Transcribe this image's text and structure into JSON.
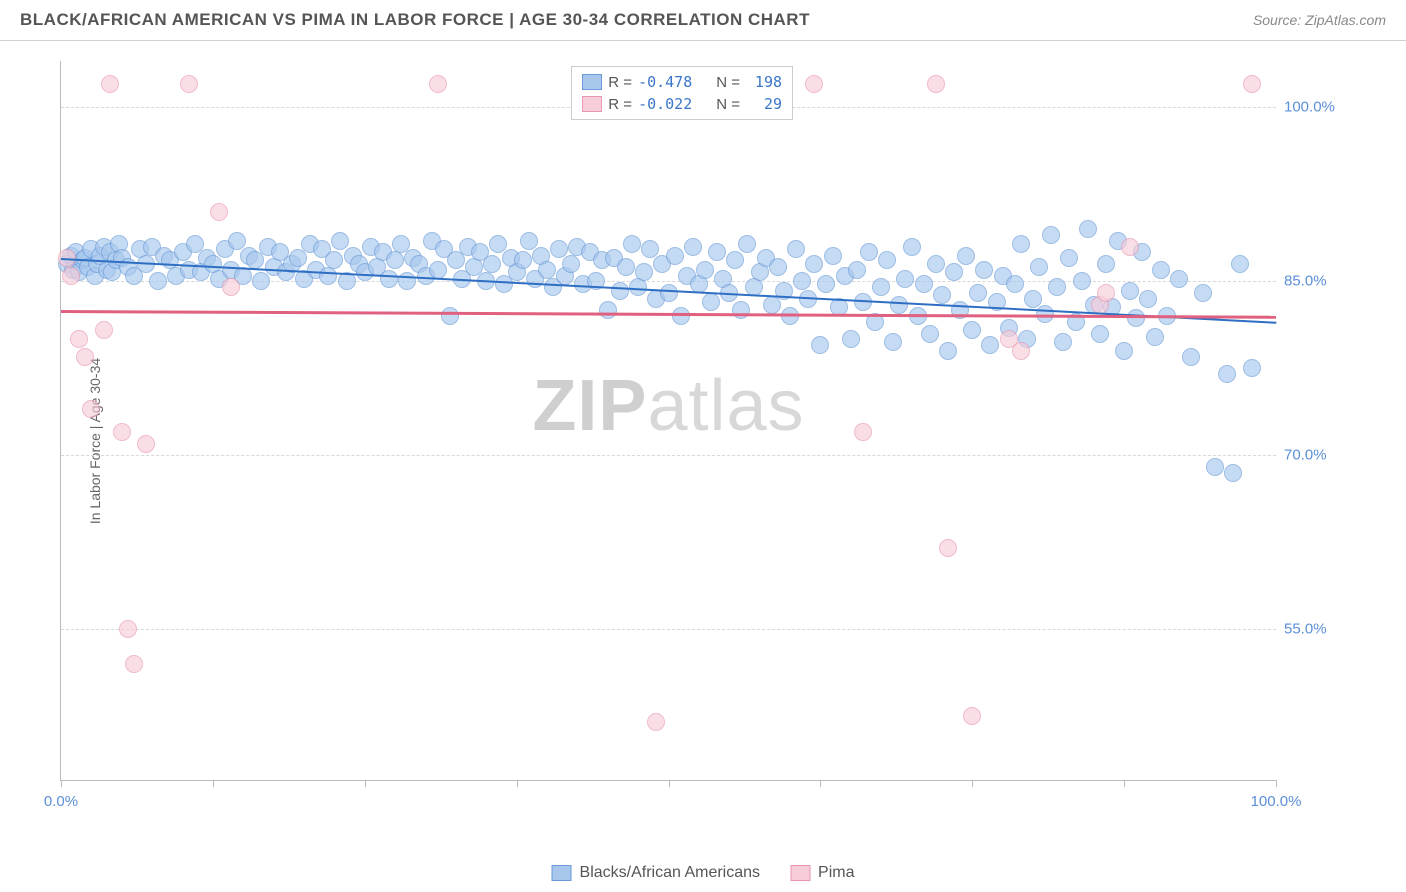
{
  "title": "BLACK/AFRICAN AMERICAN VS PIMA IN LABOR FORCE | AGE 30-34 CORRELATION CHART",
  "source": "Source: ZipAtlas.com",
  "ylabel": "In Labor Force | Age 30-34",
  "watermark_zip": "ZIP",
  "watermark_atlas": "atlas",
  "chart": {
    "type": "scatter",
    "background_color": "#ffffff",
    "grid_color": "#d8d8d8",
    "axis_color": "#bbbbbb",
    "xlim": [
      0,
      100
    ],
    "ylim": [
      42,
      104
    ],
    "ytick_values": [
      55.0,
      70.0,
      85.0,
      100.0
    ],
    "ytick_labels": [
      "55.0%",
      "70.0%",
      "85.0%",
      "100.0%"
    ],
    "xtick_values": [
      0,
      12.5,
      25,
      37.5,
      50,
      62.5,
      75,
      87.5,
      100
    ],
    "x_axis_labels": {
      "0": "0.0%",
      "100": "100.0%"
    },
    "series": [
      {
        "name": "Blacks/African Americans",
        "name_short": "blacks",
        "color_fill": "#a7c7ed",
        "color_stroke": "#6a9bd8",
        "marker_opacity": 0.65,
        "marker_radius": 9,
        "R": "-0.478",
        "N": "198",
        "trend": {
          "x1": 0,
          "y1": 87.0,
          "x2": 100,
          "y2": 81.5,
          "color": "#2e6fc4",
          "width": 2
        },
        "points": [
          [
            0.5,
            86.5
          ],
          [
            0.8,
            87.2
          ],
          [
            1.0,
            86.0
          ],
          [
            1.2,
            87.5
          ],
          [
            1.5,
            85.8
          ],
          [
            1.8,
            86.8
          ],
          [
            2.0,
            87.0
          ],
          [
            2.2,
            86.2
          ],
          [
            2.5,
            87.8
          ],
          [
            2.8,
            85.5
          ],
          [
            3.0,
            86.5
          ],
          [
            3.2,
            87.2
          ],
          [
            3.5,
            88.0
          ],
          [
            3.8,
            86.0
          ],
          [
            4.0,
            87.5
          ],
          [
            4.2,
            85.8
          ],
          [
            4.5,
            86.8
          ],
          [
            4.8,
            88.2
          ],
          [
            5.0,
            87.0
          ],
          [
            5.5,
            86.2
          ],
          [
            6.0,
            85.5
          ],
          [
            6.5,
            87.8
          ],
          [
            7.0,
            86.5
          ],
          [
            7.5,
            88.0
          ],
          [
            8.0,
            85.0
          ],
          [
            8.5,
            87.2
          ],
          [
            9.0,
            86.8
          ],
          [
            9.5,
            85.5
          ],
          [
            10.0,
            87.5
          ],
          [
            10.5,
            86.0
          ],
          [
            11.0,
            88.2
          ],
          [
            11.5,
            85.8
          ],
          [
            12.0,
            87.0
          ],
          [
            12.5,
            86.5
          ],
          [
            13.0,
            85.2
          ],
          [
            13.5,
            87.8
          ],
          [
            14.0,
            86.0
          ],
          [
            14.5,
            88.5
          ],
          [
            15.0,
            85.5
          ],
          [
            15.5,
            87.2
          ],
          [
            16.0,
            86.8
          ],
          [
            16.5,
            85.0
          ],
          [
            17.0,
            88.0
          ],
          [
            17.5,
            86.2
          ],
          [
            18.0,
            87.5
          ],
          [
            18.5,
            85.8
          ],
          [
            19.0,
            86.5
          ],
          [
            19.5,
            87.0
          ],
          [
            20.0,
            85.2
          ],
          [
            20.5,
            88.2
          ],
          [
            21.0,
            86.0
          ],
          [
            21.5,
            87.8
          ],
          [
            22.0,
            85.5
          ],
          [
            22.5,
            86.8
          ],
          [
            23.0,
            88.5
          ],
          [
            23.5,
            85.0
          ],
          [
            24.0,
            87.2
          ],
          [
            24.5,
            86.5
          ],
          [
            25.0,
            85.8
          ],
          [
            25.5,
            88.0
          ],
          [
            26.0,
            86.2
          ],
          [
            26.5,
            87.5
          ],
          [
            27.0,
            85.2
          ],
          [
            27.5,
            86.8
          ],
          [
            28.0,
            88.2
          ],
          [
            28.5,
            85.0
          ],
          [
            29.0,
            87.0
          ],
          [
            29.5,
            86.5
          ],
          [
            30.0,
            85.5
          ],
          [
            30.5,
            88.5
          ],
          [
            31.0,
            86.0
          ],
          [
            31.5,
            87.8
          ],
          [
            32.0,
            82.0
          ],
          [
            32.5,
            86.8
          ],
          [
            33.0,
            85.2
          ],
          [
            33.5,
            88.0
          ],
          [
            34.0,
            86.2
          ],
          [
            34.5,
            87.5
          ],
          [
            35.0,
            85.0
          ],
          [
            35.5,
            86.5
          ],
          [
            36.0,
            88.2
          ],
          [
            36.5,
            84.8
          ],
          [
            37.0,
            87.0
          ],
          [
            37.5,
            85.8
          ],
          [
            38.0,
            86.8
          ],
          [
            38.5,
            88.5
          ],
          [
            39.0,
            85.2
          ],
          [
            39.5,
            87.2
          ],
          [
            40.0,
            86.0
          ],
          [
            40.5,
            84.5
          ],
          [
            41.0,
            87.8
          ],
          [
            41.5,
            85.5
          ],
          [
            42.0,
            86.5
          ],
          [
            42.5,
            88.0
          ],
          [
            43.0,
            84.8
          ],
          [
            43.5,
            87.5
          ],
          [
            44.0,
            85.0
          ],
          [
            44.5,
            86.8
          ],
          [
            45.0,
            82.5
          ],
          [
            45.5,
            87.0
          ],
          [
            46.0,
            84.2
          ],
          [
            46.5,
            86.2
          ],
          [
            47.0,
            88.2
          ],
          [
            47.5,
            84.5
          ],
          [
            48.0,
            85.8
          ],
          [
            48.5,
            87.8
          ],
          [
            49.0,
            83.5
          ],
          [
            49.5,
            86.5
          ],
          [
            50.0,
            84.0
          ],
          [
            50.5,
            87.2
          ],
          [
            51.0,
            82.0
          ],
          [
            51.5,
            85.5
          ],
          [
            52.0,
            88.0
          ],
          [
            52.5,
            84.8
          ],
          [
            53.0,
            86.0
          ],
          [
            53.5,
            83.2
          ],
          [
            54.0,
            87.5
          ],
          [
            54.5,
            85.2
          ],
          [
            55.0,
            84.0
          ],
          [
            55.5,
            86.8
          ],
          [
            56.0,
            82.5
          ],
          [
            56.5,
            88.2
          ],
          [
            57.0,
            84.5
          ],
          [
            57.5,
            85.8
          ],
          [
            58.0,
            87.0
          ],
          [
            58.5,
            83.0
          ],
          [
            59.0,
            86.2
          ],
          [
            59.5,
            84.2
          ],
          [
            60.0,
            82.0
          ],
          [
            60.5,
            87.8
          ],
          [
            61.0,
            85.0
          ],
          [
            61.5,
            83.5
          ],
          [
            62.0,
            86.5
          ],
          [
            62.5,
            79.5
          ],
          [
            63.0,
            84.8
          ],
          [
            63.5,
            87.2
          ],
          [
            64.0,
            82.8
          ],
          [
            64.5,
            85.5
          ],
          [
            65.0,
            80.0
          ],
          [
            65.5,
            86.0
          ],
          [
            66.0,
            83.2
          ],
          [
            66.5,
            87.5
          ],
          [
            67.0,
            81.5
          ],
          [
            67.5,
            84.5
          ],
          [
            68.0,
            86.8
          ],
          [
            68.5,
            79.8
          ],
          [
            69.0,
            83.0
          ],
          [
            69.5,
            85.2
          ],
          [
            70.0,
            88.0
          ],
          [
            70.5,
            82.0
          ],
          [
            71.0,
            84.8
          ],
          [
            71.5,
            80.5
          ],
          [
            72.0,
            86.5
          ],
          [
            72.5,
            83.8
          ],
          [
            73.0,
            79.0
          ],
          [
            73.5,
            85.8
          ],
          [
            74.0,
            82.5
          ],
          [
            74.5,
            87.2
          ],
          [
            75.0,
            80.8
          ],
          [
            75.5,
            84.0
          ],
          [
            76.0,
            86.0
          ],
          [
            76.5,
            79.5
          ],
          [
            77.0,
            83.2
          ],
          [
            77.5,
            85.5
          ],
          [
            78.0,
            81.0
          ],
          [
            78.5,
            84.8
          ],
          [
            79.0,
            88.2
          ],
          [
            79.5,
            80.0
          ],
          [
            80.0,
            83.5
          ],
          [
            80.5,
            86.2
          ],
          [
            81.0,
            82.2
          ],
          [
            81.5,
            89.0
          ],
          [
            82.0,
            84.5
          ],
          [
            82.5,
            79.8
          ],
          [
            83.0,
            87.0
          ],
          [
            83.5,
            81.5
          ],
          [
            84.0,
            85.0
          ],
          [
            84.5,
            89.5
          ],
          [
            85.0,
            83.0
          ],
          [
            85.5,
            80.5
          ],
          [
            86.0,
            86.5
          ],
          [
            86.5,
            82.8
          ],
          [
            87.0,
            88.5
          ],
          [
            87.5,
            79.0
          ],
          [
            88.0,
            84.2
          ],
          [
            88.5,
            81.8
          ],
          [
            89.0,
            87.5
          ],
          [
            89.5,
            83.5
          ],
          [
            90.0,
            80.2
          ],
          [
            90.5,
            86.0
          ],
          [
            91.0,
            82.0
          ],
          [
            92.0,
            85.2
          ],
          [
            93.0,
            78.5
          ],
          [
            94.0,
            84.0
          ],
          [
            95.0,
            69.0
          ],
          [
            96.0,
            77.0
          ],
          [
            96.5,
            68.5
          ],
          [
            97.0,
            86.5
          ],
          [
            98.0,
            77.5
          ]
        ]
      },
      {
        "name": "Pima",
        "name_short": "pima",
        "color_fill": "#f7cdd9",
        "color_stroke": "#e896ae",
        "marker_opacity": 0.65,
        "marker_radius": 9,
        "R": "-0.022",
        "N": "29",
        "trend": {
          "x1": 0,
          "y1": 82.5,
          "x2": 100,
          "y2": 82.0,
          "color": "#e0607f",
          "width": 2.5
        },
        "points": [
          [
            0.5,
            87.0
          ],
          [
            0.8,
            85.5
          ],
          [
            1.5,
            80.0
          ],
          [
            2.0,
            78.5
          ],
          [
            2.5,
            74.0
          ],
          [
            3.5,
            80.8
          ],
          [
            4.0,
            102.0
          ],
          [
            5.0,
            72.0
          ],
          [
            5.5,
            55.0
          ],
          [
            6.0,
            52.0
          ],
          [
            7.0,
            71.0
          ],
          [
            10.5,
            102.0
          ],
          [
            13.0,
            91.0
          ],
          [
            14.0,
            84.5
          ],
          [
            31.0,
            102.0
          ],
          [
            48.0,
            102.0
          ],
          [
            49.0,
            47.0
          ],
          [
            62.0,
            102.0
          ],
          [
            66.0,
            72.0
          ],
          [
            72.0,
            102.0
          ],
          [
            73.0,
            62.0
          ],
          [
            75.0,
            47.5
          ],
          [
            78.0,
            80.0
          ],
          [
            79.0,
            79.0
          ],
          [
            85.5,
            83.0
          ],
          [
            86.0,
            84.0
          ],
          [
            88.0,
            88.0
          ],
          [
            98.0,
            102.0
          ]
        ]
      }
    ]
  },
  "legend_top": {
    "R_label": "R =",
    "N_label": "N ="
  },
  "legend_bottom": {
    "items": [
      "Blacks/African Americans",
      "Pima"
    ]
  }
}
